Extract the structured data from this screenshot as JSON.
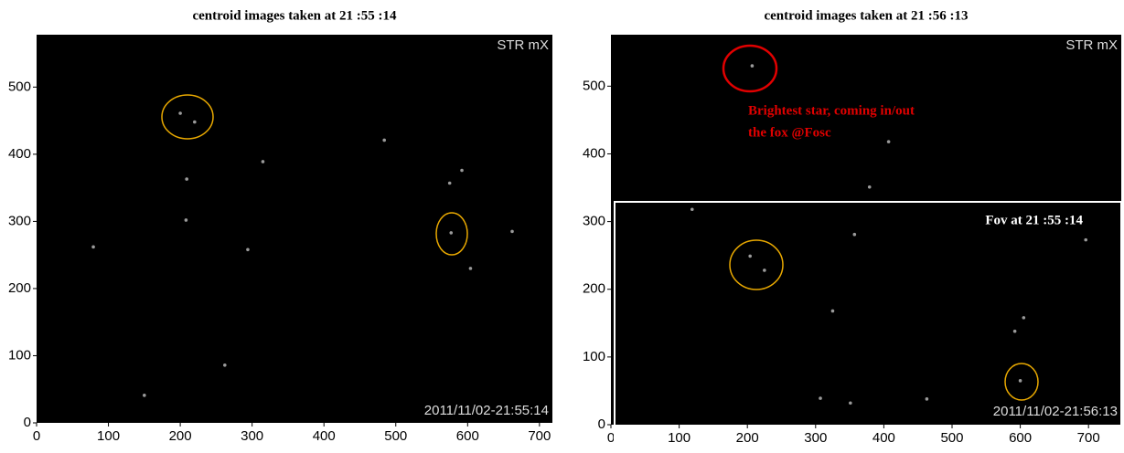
{
  "chart_data": [
    {
      "type": "scatter",
      "title": "centroid images taken at 21 :55 :14",
      "x": [
        200,
        220,
        209,
        208,
        315,
        484,
        592,
        575,
        577,
        662,
        604,
        79,
        294,
        262,
        150
      ],
      "values": [
        461,
        448,
        363,
        302,
        389,
        421,
        376,
        357,
        283,
        285,
        230,
        262,
        258,
        86,
        41
      ],
      "xlim": [
        0,
        718
      ],
      "ylim": [
        0,
        578
      ],
      "xticks": [
        0,
        100,
        200,
        300,
        400,
        500,
        600,
        700
      ],
      "yticks": [
        0,
        100,
        200,
        300,
        400,
        500
      ],
      "annotations": [
        "STR mX",
        "2011/11/02-21:55:14"
      ]
    },
    {
      "type": "scatter",
      "title": "centroid images taken at 21 :56 :13",
      "x": [
        207,
        407,
        379,
        119,
        357,
        204,
        225,
        325,
        696,
        605,
        592,
        600,
        307,
        351,
        463
      ],
      "values": [
        530,
        418,
        351,
        318,
        281,
        249,
        228,
        168,
        273,
        158,
        138,
        65,
        39,
        32,
        38
      ],
      "xlim": [
        0,
        748
      ],
      "ylim": [
        0,
        576
      ],
      "xticks": [
        0,
        100,
        200,
        300,
        400,
        500,
        600,
        700
      ],
      "yticks": [
        0,
        100,
        200,
        300,
        400,
        500
      ],
      "annotations": [
        "STR mX",
        "2011/11/02-21:56:13",
        "Brightest star, coming in/out",
        "the fox @Fosc",
        "Fov at 21 :55 :14"
      ]
    }
  ]
}
